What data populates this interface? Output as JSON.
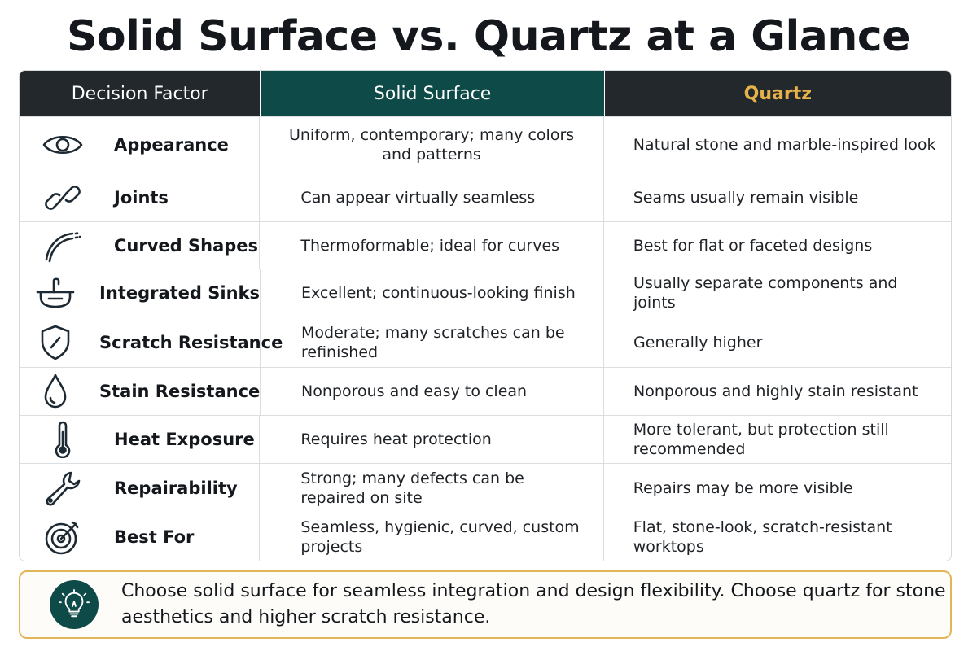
{
  "title": "Solid Surface vs. Quartz at a Glance",
  "table": {
    "headers": [
      "Decision Factor",
      "Solid Surface",
      "Quartz"
    ],
    "rows": [
      {
        "icon": "eye-icon",
        "factor": "Appearance",
        "solid": "Uniform, contemporary; many colors and patterns",
        "quartz": "Natural stone and marble-inspired look"
      },
      {
        "icon": "link-icon",
        "factor": "Joints",
        "solid": "Can appear virtually seamless",
        "quartz": "Seams usually remain visible"
      },
      {
        "icon": "curve-icon",
        "factor": "Curved Shapes",
        "solid": "Thermoformable; ideal for curves",
        "quartz": "Best for flat or faceted designs"
      },
      {
        "icon": "sink-icon",
        "factor": "Integrated Sinks",
        "solid": "Excellent; continuous-looking finish",
        "quartz": "Usually separate components and joints"
      },
      {
        "icon": "shield-icon",
        "factor": "Scratch Resistance",
        "solid": "Moderate; many scratches can be refinished",
        "quartz": "Generally higher"
      },
      {
        "icon": "drop-icon",
        "factor": "Stain Resistance",
        "solid": "Nonporous and easy to clean",
        "quartz": "Nonporous and highly stain resistant"
      },
      {
        "icon": "thermometer-icon",
        "factor": "Heat Exposure",
        "solid": "Requires heat protection",
        "quartz": "More tolerant, but protection still recommended"
      },
      {
        "icon": "wrench-icon",
        "factor": "Repairability",
        "solid": "Strong; many defects can be repaired on site",
        "quartz": "Repairs may be more visible"
      },
      {
        "icon": "target-icon",
        "factor": "Best For",
        "solid": "Seamless, hygienic, curved, custom projects",
        "quartz": "Flat, stone-look, scratch-resistant worktops"
      }
    ]
  },
  "footer": {
    "icon": "lightbulb-icon",
    "text": "Choose solid surface for seamless integration and design flexibility. Choose quartz for stone aesthetics and higher scratch resistance."
  },
  "colors": {
    "header_dark": "#23282d",
    "header_teal": "#0e4a47",
    "quartz_gold": "#e6b34a",
    "footer_border": "#e2b658"
  }
}
